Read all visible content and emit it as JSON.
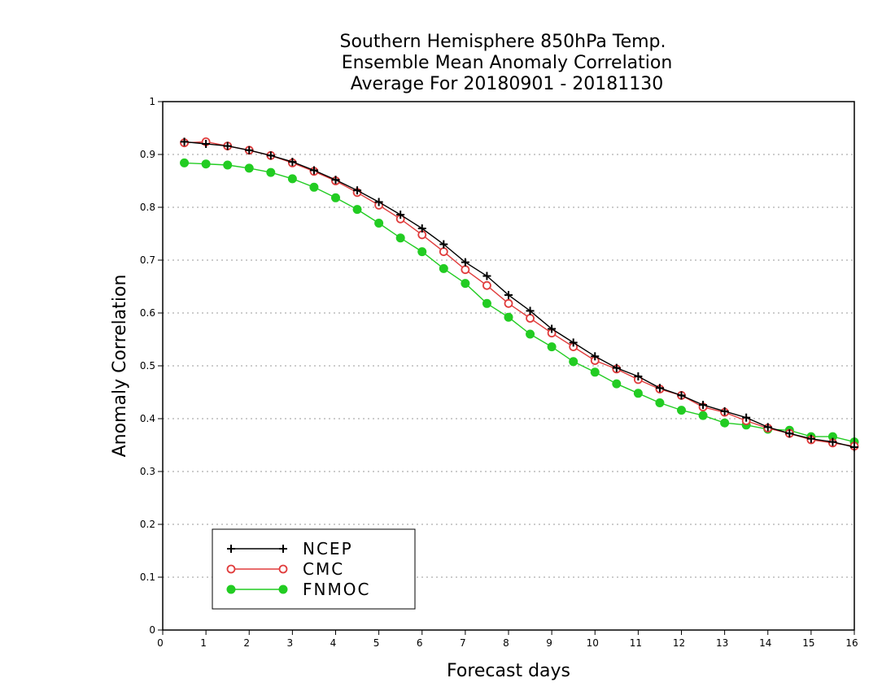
{
  "chart_data": {
    "type": "line",
    "title_lines": [
      "Southern Hemisphere 850hPa Temp.",
      "Ensemble Mean Anomaly Correlation",
      "Average For 20180901 - 20181130"
    ],
    "xlabel": "Forecast days",
    "ylabel": "Anomaly Correlation",
    "xlim": [
      0,
      16
    ],
    "ylim": [
      0,
      1
    ],
    "x_ticks": [
      "0",
      "1",
      "2",
      "3",
      "4",
      "5",
      "6",
      "7",
      "8",
      "9",
      "10",
      "11",
      "12",
      "13",
      "14",
      "15",
      "16"
    ],
    "y_ticks": [
      "0",
      "0.1",
      "0.2",
      "0.3",
      "0.4",
      "0.5",
      "0.6",
      "0.7",
      "0.8",
      "0.9",
      "1"
    ],
    "grid": "horizontal dotted",
    "legend_position": "bottom-left",
    "x": [
      0.5,
      1,
      1.5,
      2,
      2.5,
      3,
      3.5,
      4,
      4.5,
      5,
      5.5,
      6,
      6.5,
      7,
      7.5,
      8,
      8.5,
      9,
      9.5,
      10,
      10.5,
      11,
      11.5,
      12,
      12.5,
      13,
      13.5,
      14,
      14.5,
      15,
      15.5,
      16
    ],
    "series": [
      {
        "name": "NCEP",
        "color": "#000000",
        "marker": "plus",
        "values": [
          0.924,
          0.92,
          0.916,
          0.908,
          0.898,
          0.886,
          0.87,
          0.852,
          0.832,
          0.81,
          0.786,
          0.76,
          0.73,
          0.696,
          0.67,
          0.634,
          0.604,
          0.57,
          0.544,
          0.518,
          0.496,
          0.48,
          0.458,
          0.444,
          0.426,
          0.414,
          0.402,
          0.384,
          0.372,
          0.362,
          0.356,
          0.346
        ]
      },
      {
        "name": "CMC",
        "color": "#e03c3c",
        "marker": "open-circle",
        "values": [
          0.922,
          0.924,
          0.916,
          0.908,
          0.898,
          0.884,
          0.868,
          0.85,
          0.828,
          0.804,
          0.778,
          0.748,
          0.716,
          0.682,
          0.652,
          0.618,
          0.59,
          0.562,
          0.536,
          0.51,
          0.494,
          0.474,
          0.456,
          0.444,
          0.422,
          0.412,
          0.396,
          0.382,
          0.372,
          0.36,
          0.354,
          0.348
        ]
      },
      {
        "name": "FNMOC",
        "color": "#22cc22",
        "marker": "filled-circle",
        "values": [
          0.884,
          0.882,
          0.88,
          0.874,
          0.866,
          0.854,
          0.838,
          0.818,
          0.796,
          0.77,
          0.742,
          0.716,
          0.684,
          0.656,
          0.618,
          0.592,
          0.56,
          0.536,
          0.508,
          0.488,
          0.466,
          0.448,
          0.43,
          0.416,
          0.406,
          0.392,
          0.388,
          0.38,
          0.378,
          0.366,
          0.366,
          0.356
        ]
      }
    ]
  }
}
